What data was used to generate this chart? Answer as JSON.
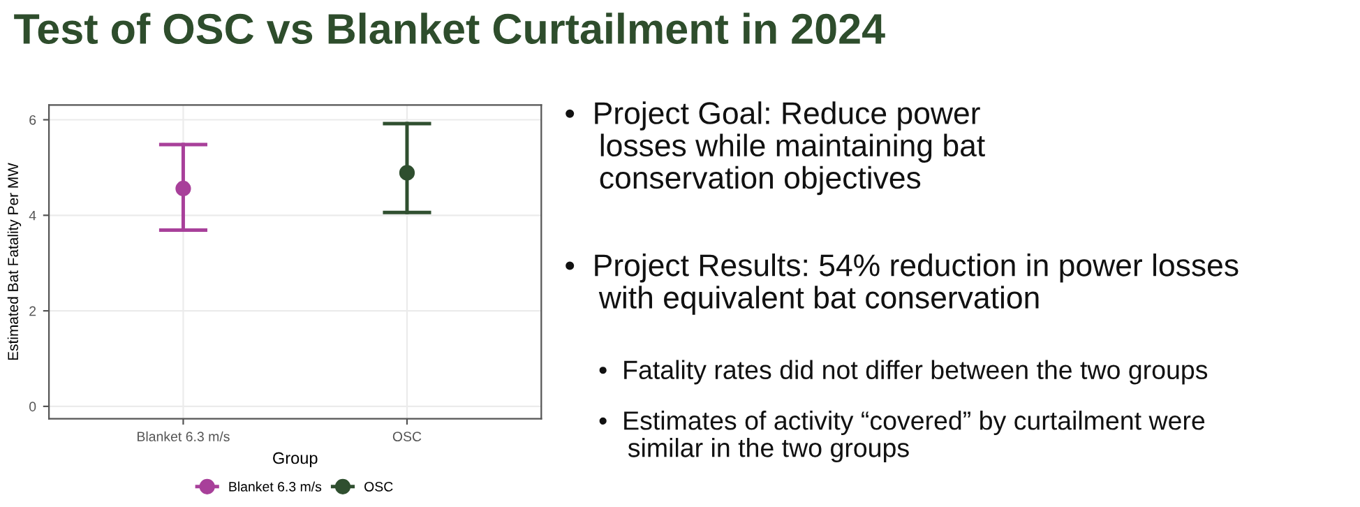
{
  "chart_data": {
    "type": "scatter",
    "title": "Test of OSC vs Blanket Curtailment in 2024",
    "xlabel": "Group",
    "ylabel": "Estimated Bat Fatality Per MW",
    "categories": [
      "Blanket 6.3 m/s",
      "OSC"
    ],
    "series": [
      {
        "name": "Blanket 6.3 m/s",
        "color": "#a8409a",
        "values": [
          4.56,
          null
        ],
        "errors": [
          [
            3.69,
            5.48
          ],
          null
        ]
      },
      {
        "name": "OSC",
        "color": "#2f4f2f",
        "values": [
          null,
          4.89
        ],
        "errors": [
          null,
          [
            4.06,
            5.92
          ]
        ]
      }
    ],
    "ylim": [
      -0.26,
      6.31
    ],
    "yticks": [
      0,
      2,
      4,
      6
    ],
    "grid": true,
    "legend": "bottom",
    "marker": "circle",
    "annotations": [
      "•  Project Goal: Reduce power\n    losses while maintaining bat\n    conservation objectives",
      "•  Project Results: 54% reduction in power losses\n    with equivalent bat conservation",
      "•  Fatality rates did not differ between the two groups",
      "•  Estimates of activity “covered” by curtailment were\n    similar in the two groups"
    ]
  }
}
